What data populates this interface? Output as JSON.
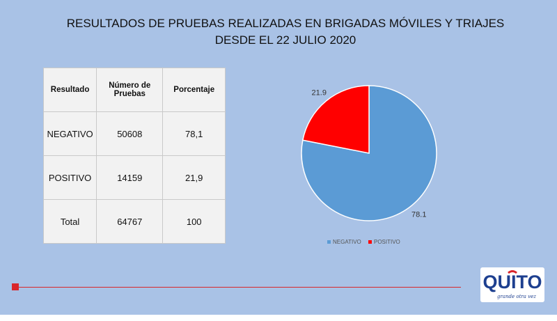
{
  "title": {
    "line1": "RESULTADOS DE PRUEBAS REALIZADAS EN BRIGADAS MÓVILES Y TRIAJES",
    "line2": "DESDE EL 22 JULIO 2020"
  },
  "table": {
    "headers": [
      "Resultado",
      "Número de Pruebas",
      "Porcentaje"
    ],
    "rows": [
      [
        "NEGATIVO",
        "50608",
        "78,1"
      ],
      [
        "POSITIVO",
        "14159",
        "21,9"
      ],
      [
        "Total",
        "64767",
        "100"
      ]
    ]
  },
  "chart_data": {
    "type": "pie",
    "categories": [
      "NEGATIVO",
      "POSITIVO"
    ],
    "values": [
      78.1,
      21.9
    ],
    "value_labels": [
      "78.1",
      "21.9"
    ],
    "colors": [
      "#5b9bd5",
      "#ff0000"
    ],
    "legend_position": "bottom"
  },
  "logo": {
    "text": "QUITO",
    "tagline": "grande otra vez"
  },
  "colors": {
    "background": "#a9c2e6",
    "accent_line": "#d9262b"
  }
}
